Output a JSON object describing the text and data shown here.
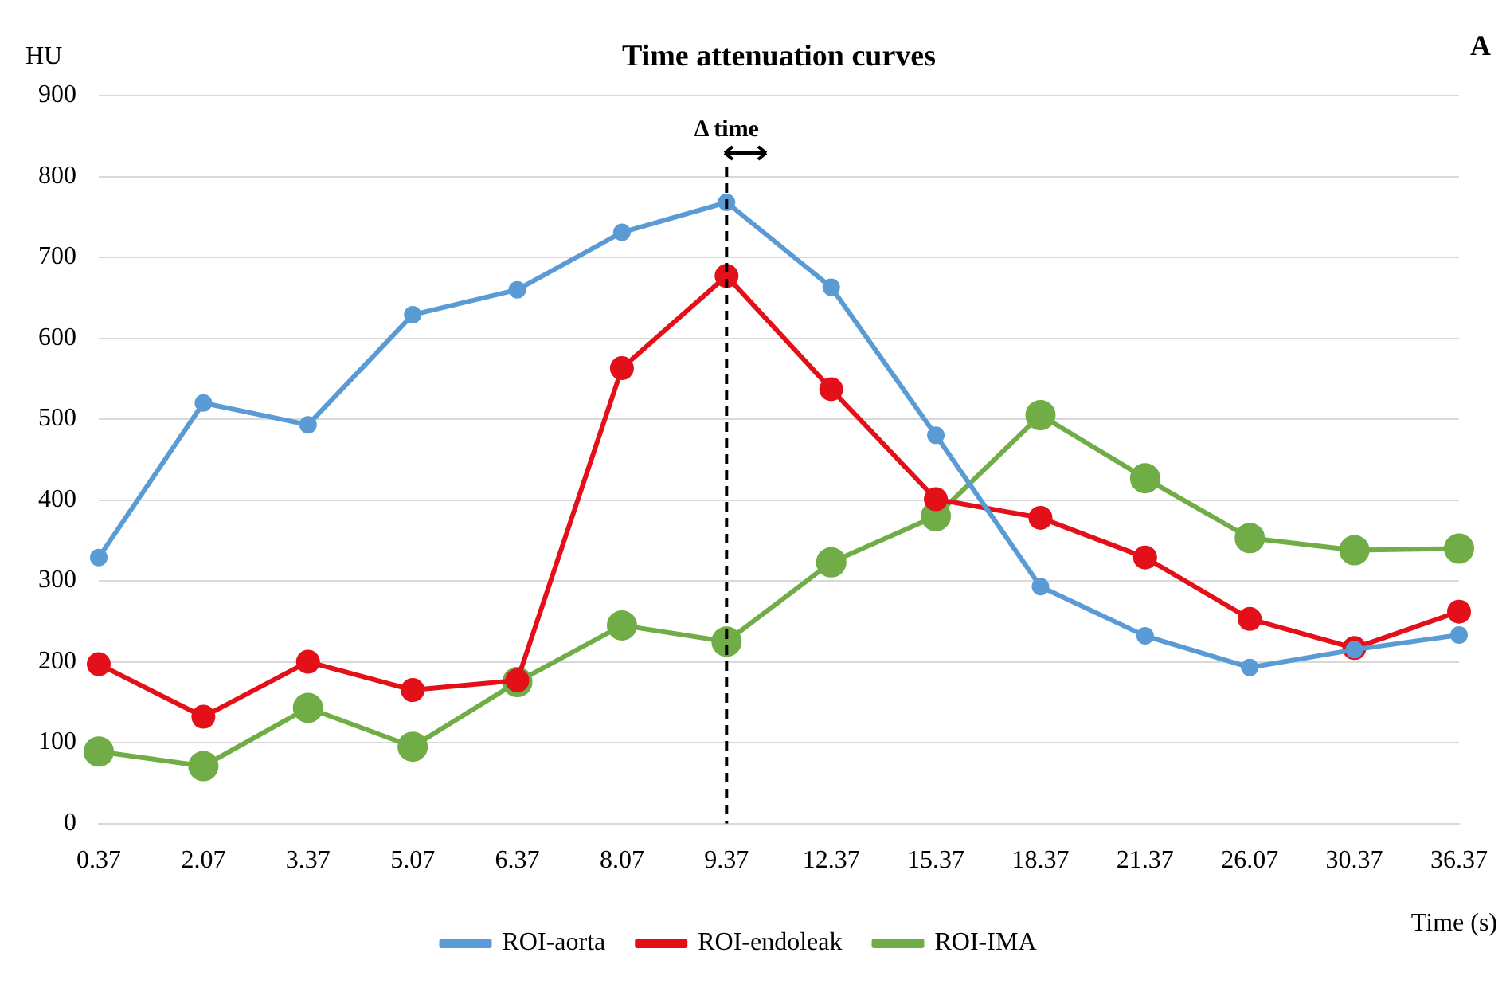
{
  "chart_data": {
    "type": "line",
    "title": "Time attenuation curves",
    "xlabel": "Time (s)",
    "ylabel": "HU",
    "categories": [
      "0.37",
      "2.07",
      "3.37",
      "5.07",
      "6.37",
      "8.07",
      "9.37",
      "12.37",
      "15.37",
      "18.37",
      "21.37",
      "26.07",
      "30.37",
      "36.37"
    ],
    "series": [
      {
        "name": "ROI-aorta",
        "color": "#5b9bd5",
        "values": [
          329,
          520,
          493,
          629,
          660,
          731,
          768,
          663,
          480,
          293,
          232,
          193,
          215,
          233
        ]
      },
      {
        "name": "ROI-endoleak",
        "color": "#e3101a",
        "values": [
          197,
          132,
          200,
          165,
          177,
          563,
          677,
          537,
          401,
          378,
          329,
          253,
          217,
          262
        ]
      },
      {
        "name": "ROI-IMA",
        "color": "#70ad47",
        "values": [
          89,
          71,
          143,
          95,
          175,
          245,
          225,
          323,
          380,
          505,
          427,
          353,
          338,
          340
        ]
      }
    ],
    "ylim": [
      0,
      900
    ],
    "yticks": [
      0,
      100,
      200,
      300,
      400,
      500,
      600,
      700,
      800,
      900
    ],
    "ref_lines": [
      {
        "axis": "x",
        "value": "9.37",
        "label": "Δ time",
        "color": "#000000",
        "line_style": "dashed"
      }
    ],
    "annotations": [
      "A"
    ],
    "grid": "y",
    "legend": "bottom",
    "marker": "circle",
    "line_style": "solid"
  }
}
